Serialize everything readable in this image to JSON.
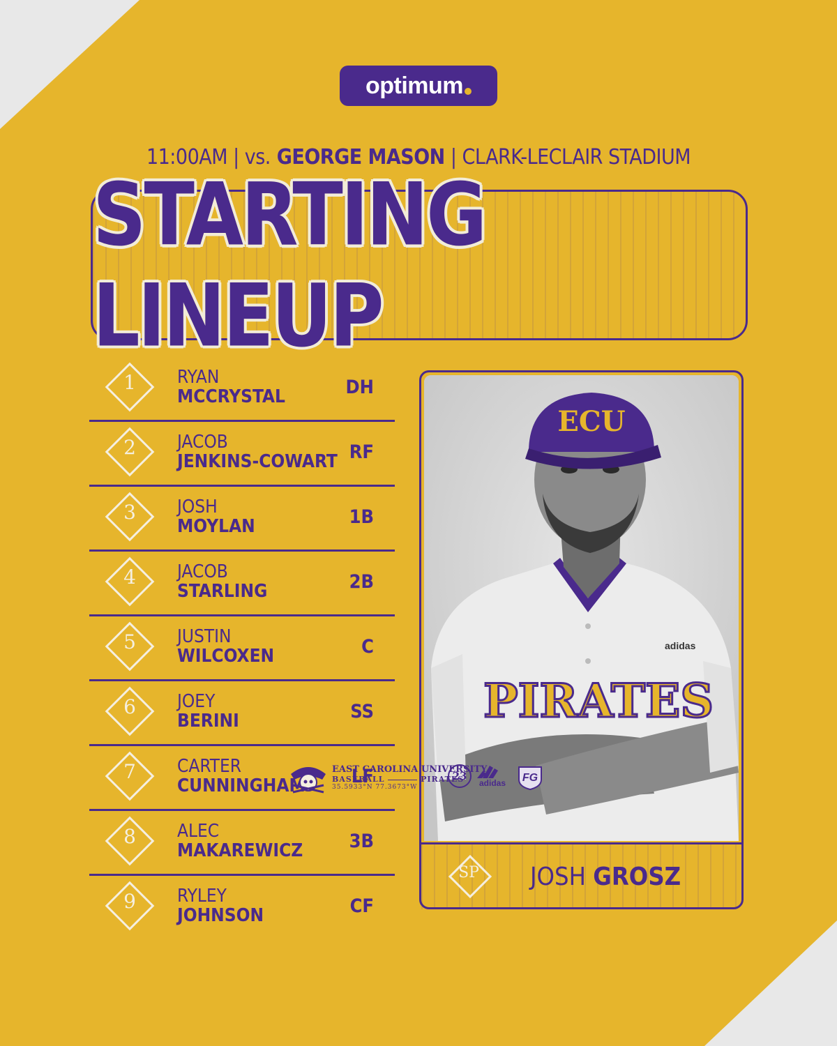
{
  "sponsor": {
    "name": "optimum"
  },
  "info": {
    "time": "11:00AM",
    "sep1": " | ",
    "vs": "vs.",
    "opponent": "GEORGE MASON",
    "sep2": " | ",
    "venue": "CLARK-LECLAIR STADIUM"
  },
  "title": "STARTING LINEUP",
  "lineup": [
    {
      "order": "1",
      "first": "RYAN",
      "last": "MCCRYSTAL",
      "pos": "DH"
    },
    {
      "order": "2",
      "first": "JACOB",
      "last": "JENKINS-COWART",
      "pos": "RF"
    },
    {
      "order": "3",
      "first": "JOSH",
      "last": "MOYLAN",
      "pos": "1B"
    },
    {
      "order": "4",
      "first": "JACOB",
      "last": "STARLING",
      "pos": "2B"
    },
    {
      "order": "5",
      "first": "JUSTIN",
      "last": "WILCOXEN",
      "pos": "C"
    },
    {
      "order": "6",
      "first": "JOEY",
      "last": "BERINI",
      "pos": "SS"
    },
    {
      "order": "7",
      "first": "CARTER",
      "last": "CUNNINGHAM",
      "pos": "LF"
    },
    {
      "order": "8",
      "first": "ALEC",
      "last": "MAKAREWICZ",
      "pos": "3B"
    },
    {
      "order": "9",
      "first": "RYLEY",
      "last": "JOHNSON",
      "pos": "CF"
    }
  ],
  "pitcher": {
    "label": "SP",
    "first": "JOSH",
    "last": "GROSZ",
    "cap_text": "ECU",
    "jersey_text": "PIRATES",
    "jersey_brand": "adidas"
  },
  "footer": {
    "university": "EAST CAROLINA UNIVERSITY",
    "sport": "BASEBALL",
    "team": "PIRATES",
    "coords": "35.5933°N  77.3673°W",
    "number": "23",
    "brand": "adidas",
    "conference": "FG"
  },
  "colors": {
    "purple": "#4a2a8c",
    "gold": "#e6b52c",
    "cream": "#f5efe0"
  }
}
